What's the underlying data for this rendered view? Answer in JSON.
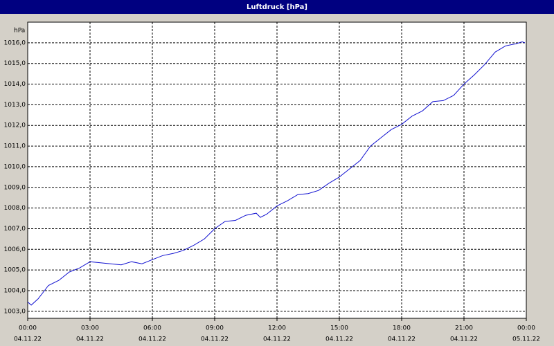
{
  "chart_data": {
    "type": "line",
    "title": "Luftdruck [hPa]",
    "y_label": "hPa",
    "grid": true,
    "xlim": [
      0,
      24
    ],
    "ylim": [
      1002.66,
      1017.0
    ],
    "xticks": [
      {
        "value": 0,
        "label": "00:00",
        "date": "04.11.22"
      },
      {
        "value": 3,
        "label": "03:00",
        "date": "04.11.22"
      },
      {
        "value": 6,
        "label": "06:00",
        "date": "04.11.22"
      },
      {
        "value": 9,
        "label": "09:00",
        "date": "04.11.22"
      },
      {
        "value": 12,
        "label": "12:00",
        "date": "04.11.22"
      },
      {
        "value": 15,
        "label": "15:00",
        "date": "04.11.22"
      },
      {
        "value": 18,
        "label": "18:00",
        "date": "04.11.22"
      },
      {
        "value": 21,
        "label": "21:00",
        "date": "04.11.22"
      },
      {
        "value": 24,
        "label": "00:00",
        "date": "05.11.22"
      }
    ],
    "yticks": [
      {
        "value": 1003,
        "label": "1003,0"
      },
      {
        "value": 1004,
        "label": "1004,0"
      },
      {
        "value": 1005,
        "label": "1005,0"
      },
      {
        "value": 1006,
        "label": "1006,0"
      },
      {
        "value": 1007,
        "label": "1007,0"
      },
      {
        "value": 1008,
        "label": "1008,0"
      },
      {
        "value": 1009,
        "label": "1009,0"
      },
      {
        "value": 1010,
        "label": "1010,0"
      },
      {
        "value": 1011,
        "label": "1011,0"
      },
      {
        "value": 1012,
        "label": "1012,0"
      },
      {
        "value": 1013,
        "label": "1013,0"
      },
      {
        "value": 1014,
        "label": "1014,0"
      },
      {
        "value": 1015,
        "label": "1015,0"
      },
      {
        "value": 1016,
        "label": "1016,0"
      }
    ],
    "series": [
      {
        "name": "Luftdruck",
        "color": "#1010d0",
        "x": [
          0,
          0.17,
          0.5,
          1,
          1.5,
          2,
          2.5,
          3,
          3.5,
          4,
          4.5,
          5,
          5.5,
          6,
          6.5,
          7,
          7.5,
          8,
          8.5,
          9,
          9.5,
          10,
          10.5,
          11,
          11.2,
          11.5,
          12,
          12.5,
          13,
          13.5,
          14,
          14.5,
          15,
          15.5,
          16,
          16.5,
          17,
          17.5,
          18,
          18.5,
          19,
          19.5,
          20,
          20.5,
          21,
          21.5,
          22,
          22.5,
          23,
          23.5,
          23.8,
          23.93
        ],
        "values": [
          1003.45,
          1003.3,
          1003.6,
          1004.25,
          1004.5,
          1004.9,
          1005.1,
          1005.4,
          1005.35,
          1005.3,
          1005.25,
          1005.4,
          1005.3,
          1005.5,
          1005.7,
          1005.8,
          1005.95,
          1006.2,
          1006.5,
          1007.0,
          1007.35,
          1007.4,
          1007.65,
          1007.75,
          1007.55,
          1007.7,
          1008.1,
          1008.35,
          1008.65,
          1008.7,
          1008.85,
          1009.2,
          1009.5,
          1009.9,
          1010.3,
          1011.0,
          1011.4,
          1011.8,
          1012.05,
          1012.45,
          1012.7,
          1013.15,
          1013.2,
          1013.45,
          1014.0,
          1014.45,
          1014.95,
          1015.55,
          1015.85,
          1015.95,
          1016.05,
          1016.0
        ]
      }
    ]
  }
}
